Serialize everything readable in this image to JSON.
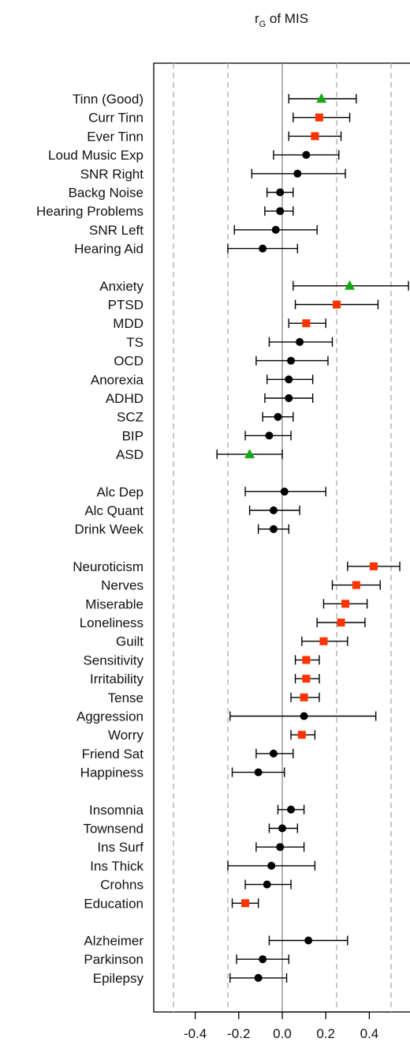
{
  "chart_data": {
    "type": "forest",
    "title": "r",
    "title_sub": "G",
    "title_rest": " of MIS",
    "xlim": [
      -0.59,
      0.59
    ],
    "xticks": [
      -0.4,
      -0.2,
      0.0,
      0.2,
      0.4
    ],
    "xtick_labels": [
      "-0.4",
      "-0.2",
      "0.0",
      "0.2",
      "0.4"
    ],
    "dashed_lines": [
      -0.5,
      -0.25,
      0.25,
      0.5
    ],
    "zero_line": 0.0,
    "colors": {
      "black": "#000000",
      "red": "#ff3300",
      "green": "#11aa11"
    },
    "groups": [
      {
        "items": [
          {
            "label": "Tinn (Good)",
            "est": 0.18,
            "lo": 0.03,
            "hi": 0.34,
            "marker": "triangle",
            "color": "green"
          },
          {
            "label": "Curr Tinn",
            "est": 0.17,
            "lo": 0.05,
            "hi": 0.31,
            "marker": "square",
            "color": "red"
          },
          {
            "label": "Ever Tinn",
            "est": 0.15,
            "lo": 0.03,
            "hi": 0.27,
            "marker": "square",
            "color": "red"
          },
          {
            "label": "Loud Music Exp",
            "est": 0.11,
            "lo": -0.04,
            "hi": 0.26,
            "marker": "circle",
            "color": "black"
          },
          {
            "label": "SNR Right",
            "est": 0.07,
            "lo": -0.14,
            "hi": 0.29,
            "marker": "circle",
            "color": "black"
          },
          {
            "label": "Backg Noise",
            "est": -0.01,
            "lo": -0.07,
            "hi": 0.05,
            "marker": "circle",
            "color": "black"
          },
          {
            "label": "Hearing Problems",
            "est": -0.01,
            "lo": -0.08,
            "hi": 0.05,
            "marker": "circle",
            "color": "black"
          },
          {
            "label": "SNR Left",
            "est": -0.03,
            "lo": -0.22,
            "hi": 0.16,
            "marker": "circle",
            "color": "black"
          },
          {
            "label": "Hearing Aid",
            "est": -0.09,
            "lo": -0.25,
            "hi": 0.07,
            "marker": "circle",
            "color": "black"
          }
        ]
      },
      {
        "items": [
          {
            "label": "Anxiety",
            "est": 0.31,
            "lo": 0.05,
            "hi": 0.58,
            "marker": "triangle",
            "color": "green"
          },
          {
            "label": "PTSD",
            "est": 0.25,
            "lo": 0.06,
            "hi": 0.44,
            "marker": "square",
            "color": "red"
          },
          {
            "label": "MDD",
            "est": 0.11,
            "lo": 0.03,
            "hi": 0.2,
            "marker": "square",
            "color": "red"
          },
          {
            "label": "TS",
            "est": 0.08,
            "lo": -0.06,
            "hi": 0.23,
            "marker": "circle",
            "color": "black"
          },
          {
            "label": "OCD",
            "est": 0.04,
            "lo": -0.12,
            "hi": 0.21,
            "marker": "circle",
            "color": "black"
          },
          {
            "label": "Anorexia",
            "est": 0.03,
            "lo": -0.07,
            "hi": 0.14,
            "marker": "circle",
            "color": "black"
          },
          {
            "label": "ADHD",
            "est": 0.03,
            "lo": -0.08,
            "hi": 0.14,
            "marker": "circle",
            "color": "black"
          },
          {
            "label": "SCZ",
            "est": -0.02,
            "lo": -0.09,
            "hi": 0.05,
            "marker": "circle",
            "color": "black"
          },
          {
            "label": "BIP",
            "est": -0.06,
            "lo": -0.17,
            "hi": 0.04,
            "marker": "circle",
            "color": "black"
          },
          {
            "label": "ASD",
            "est": -0.15,
            "lo": -0.3,
            "hi": 0.0,
            "marker": "triangle",
            "color": "green"
          }
        ]
      },
      {
        "items": [
          {
            "label": "Alc Dep",
            "est": 0.01,
            "lo": -0.17,
            "hi": 0.2,
            "marker": "circle",
            "color": "black"
          },
          {
            "label": "Alc Quant",
            "est": -0.04,
            "lo": -0.15,
            "hi": 0.08,
            "marker": "circle",
            "color": "black"
          },
          {
            "label": "Drink Week",
            "est": -0.04,
            "lo": -0.11,
            "hi": 0.03,
            "marker": "circle",
            "color": "black"
          }
        ]
      },
      {
        "items": [
          {
            "label": "Neuroticism",
            "est": 0.42,
            "lo": 0.3,
            "hi": 0.54,
            "marker": "square",
            "color": "red"
          },
          {
            "label": "Nerves",
            "est": 0.34,
            "lo": 0.23,
            "hi": 0.45,
            "marker": "square",
            "color": "red"
          },
          {
            "label": "Miserable",
            "est": 0.29,
            "lo": 0.19,
            "hi": 0.39,
            "marker": "square",
            "color": "red"
          },
          {
            "label": "Loneliness",
            "est": 0.27,
            "lo": 0.16,
            "hi": 0.38,
            "marker": "square",
            "color": "red"
          },
          {
            "label": "Guilt",
            "est": 0.19,
            "lo": 0.09,
            "hi": 0.3,
            "marker": "square",
            "color": "red"
          },
          {
            "label": "Sensitivity",
            "est": 0.11,
            "lo": 0.06,
            "hi": 0.17,
            "marker": "square",
            "color": "red"
          },
          {
            "label": "Irritability",
            "est": 0.11,
            "lo": 0.06,
            "hi": 0.17,
            "marker": "square",
            "color": "red"
          },
          {
            "label": "Tense",
            "est": 0.1,
            "lo": 0.04,
            "hi": 0.17,
            "marker": "square",
            "color": "red"
          },
          {
            "label": "Aggression",
            "est": 0.1,
            "lo": -0.24,
            "hi": 0.43,
            "marker": "circle",
            "color": "black"
          },
          {
            "label": "Worry",
            "est": 0.09,
            "lo": 0.04,
            "hi": 0.15,
            "marker": "square",
            "color": "red"
          },
          {
            "label": "Friend Sat",
            "est": -0.04,
            "lo": -0.12,
            "hi": 0.05,
            "marker": "circle",
            "color": "black"
          },
          {
            "label": "Happiness",
            "est": -0.11,
            "lo": -0.23,
            "hi": 0.01,
            "marker": "circle",
            "color": "black"
          }
        ]
      },
      {
        "items": [
          {
            "label": "Insomnia",
            "est": 0.04,
            "lo": -0.02,
            "hi": 0.1,
            "marker": "circle",
            "color": "black"
          },
          {
            "label": "Townsend",
            "est": 0.0,
            "lo": -0.06,
            "hi": 0.07,
            "marker": "circle",
            "color": "black"
          },
          {
            "label": "Ins Surf",
            "est": -0.01,
            "lo": -0.12,
            "hi": 0.1,
            "marker": "circle",
            "color": "black"
          },
          {
            "label": "Ins Thick",
            "est": -0.05,
            "lo": -0.25,
            "hi": 0.15,
            "marker": "circle",
            "color": "black"
          },
          {
            "label": "Crohns",
            "est": -0.07,
            "lo": -0.17,
            "hi": 0.04,
            "marker": "circle",
            "color": "black"
          },
          {
            "label": "Education",
            "est": -0.17,
            "lo": -0.23,
            "hi": -0.11,
            "marker": "square",
            "color": "red"
          }
        ]
      },
      {
        "items": [
          {
            "label": "Alzheimer",
            "est": 0.12,
            "lo": -0.06,
            "hi": 0.3,
            "marker": "circle",
            "color": "black"
          },
          {
            "label": "Parkinson",
            "est": -0.09,
            "lo": -0.21,
            "hi": 0.03,
            "marker": "circle",
            "color": "black"
          },
          {
            "label": "Epilepsy",
            "est": -0.11,
            "lo": -0.24,
            "hi": 0.02,
            "marker": "circle",
            "color": "black"
          }
        ]
      }
    ]
  }
}
